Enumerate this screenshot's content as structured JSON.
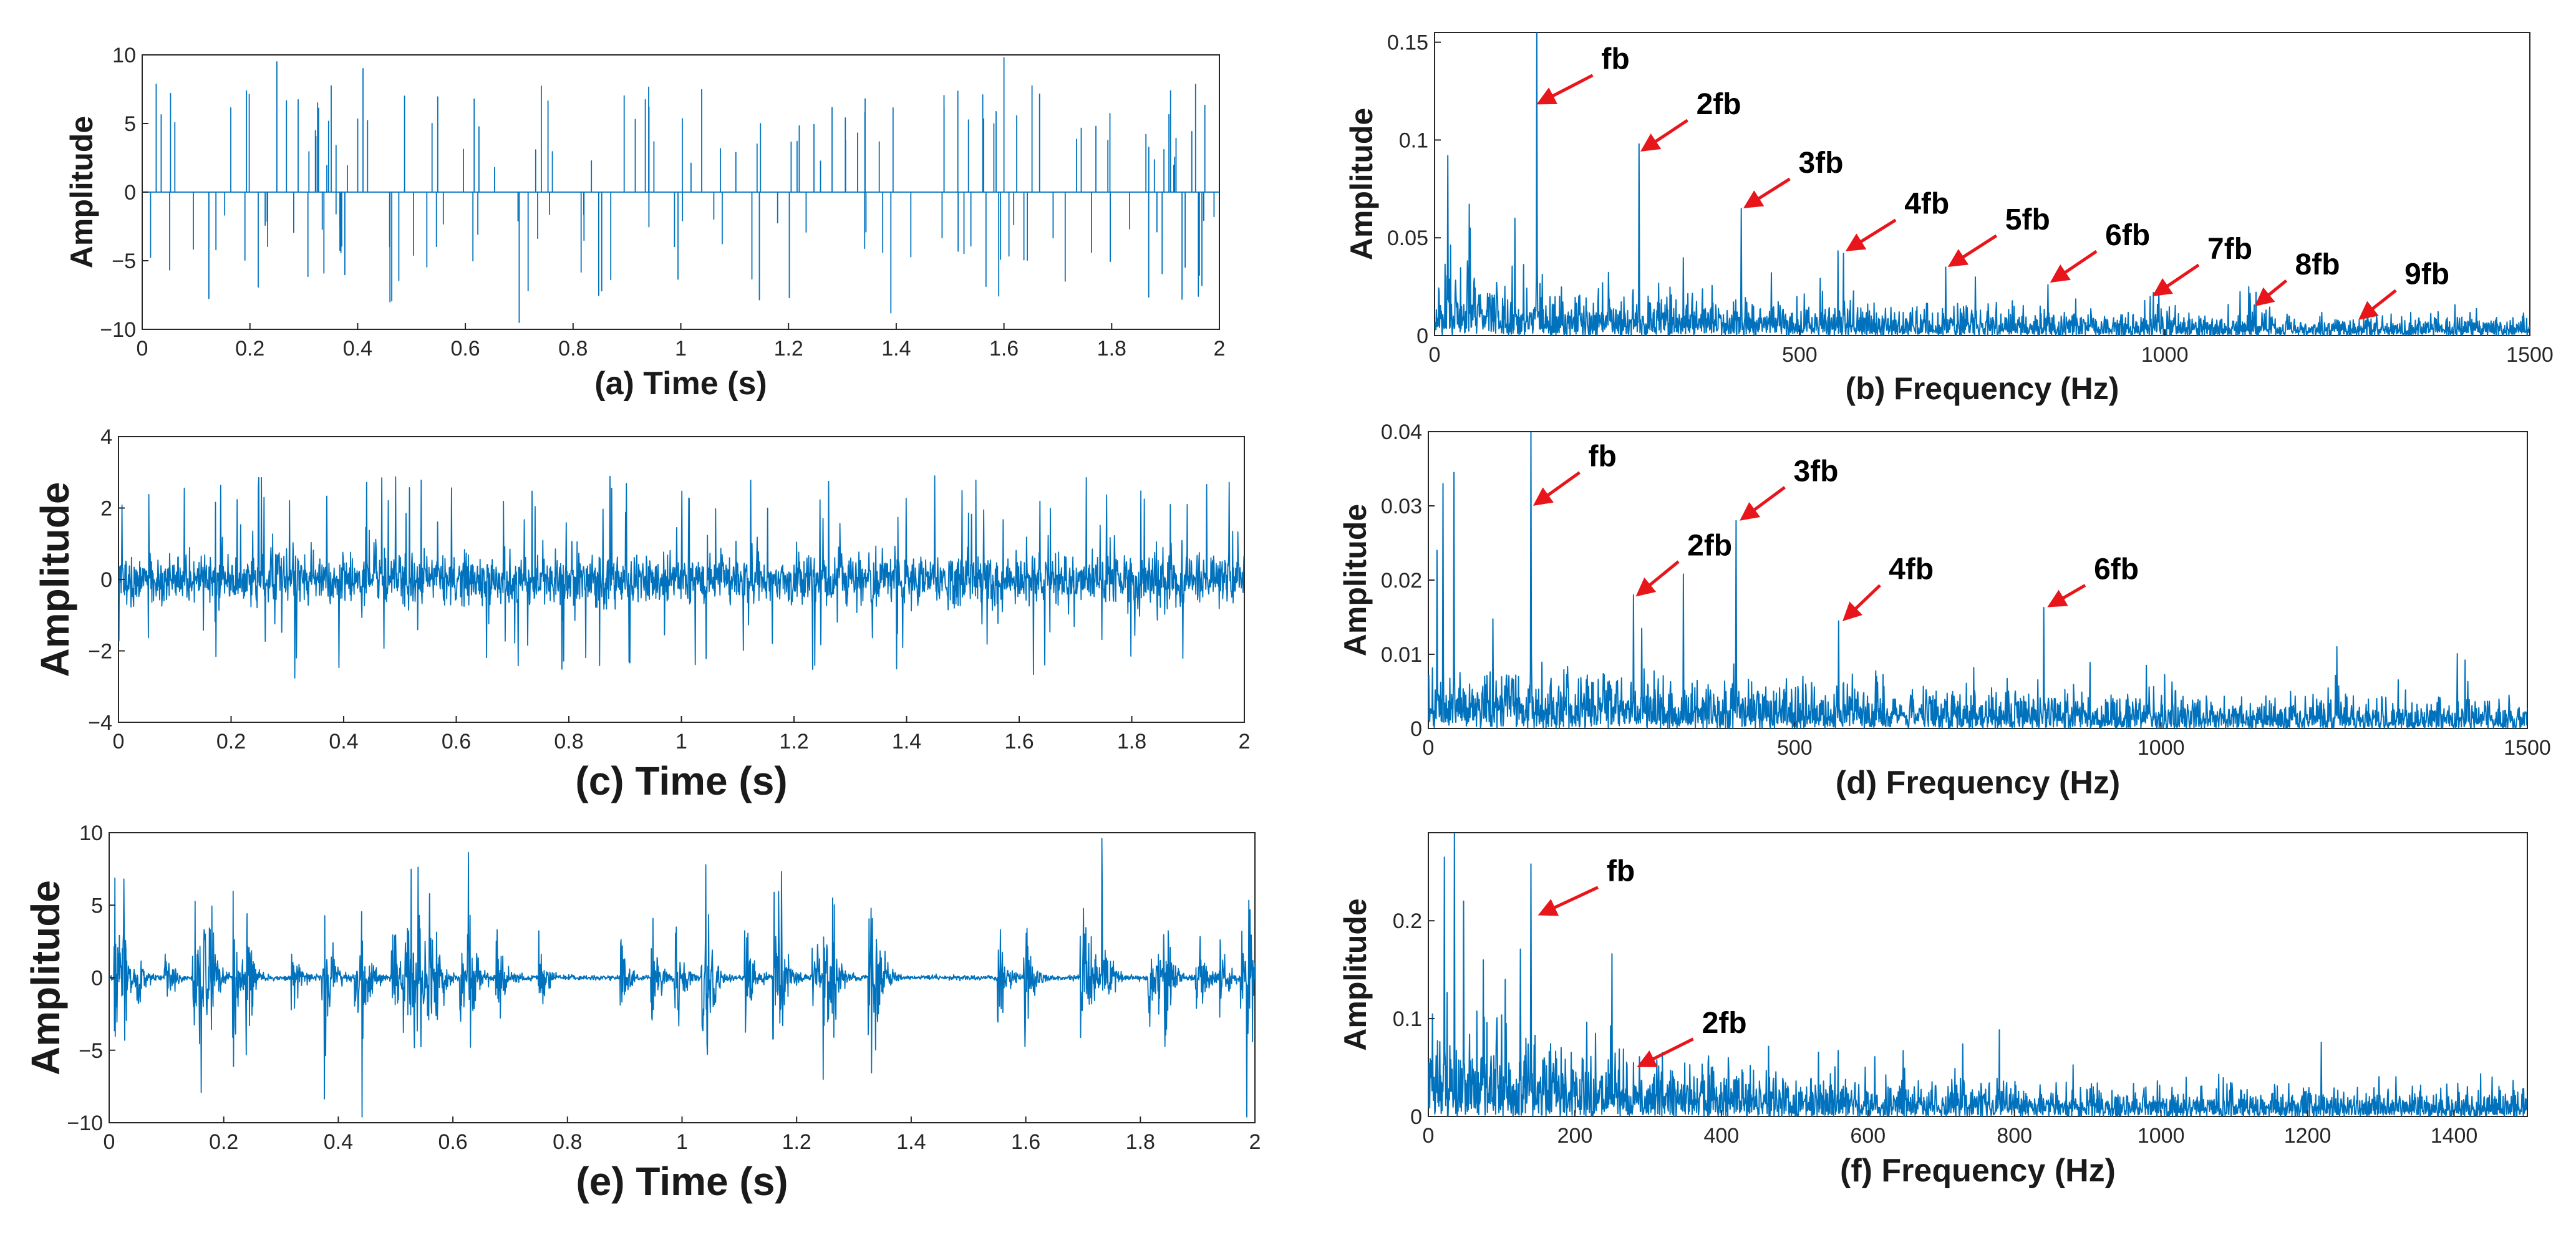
{
  "figure": {
    "signal_color": "#0072bd",
    "arrow_color": "#e8161b"
  },
  "chart_data": [
    {
      "id": "a",
      "type": "line",
      "kind": "impulse-time",
      "xlabel": "(a) Time (s)",
      "ylabel": "Amplitude",
      "xlim": [
        0,
        2
      ],
      "ylim": [
        -10,
        10
      ],
      "xticks": [
        0,
        0.2,
        0.4,
        0.6,
        0.8,
        1,
        1.2,
        1.4,
        1.6,
        1.8,
        2
      ],
      "xticklabels": [
        "0",
        "0.2",
        "0.4",
        "0.6",
        "0.8",
        "1",
        "1.2",
        "1.4",
        "1.6",
        "1.8",
        "2"
      ],
      "yticks": [
        -10,
        -5,
        0,
        5,
        10
      ],
      "yticklabels": [
        "−10",
        "−5",
        "0",
        "5",
        "10"
      ],
      "peak_amplitude": 9.8,
      "grid": false,
      "annotations": []
    },
    {
      "id": "b",
      "type": "line",
      "kind": "spectrum",
      "xlabel": "(b) Frequency (Hz)",
      "ylabel": "Amplitude",
      "xlim": [
        0,
        1500
      ],
      "ylim": [
        0,
        0.155
      ],
      "xticks": [
        0,
        500,
        1000,
        1500
      ],
      "xticklabels": [
        "0",
        "500",
        "1000",
        "1500"
      ],
      "yticks": [
        0,
        0.05,
        0.1,
        0.15
      ],
      "yticklabels": [
        "0",
        "0.05",
        "0.1",
        "0.15"
      ],
      "noise_level": 0.012,
      "noise_decay_hz": 600,
      "peaks": [
        {
          "x": 140,
          "y": 0.155
        },
        {
          "x": 280,
          "y": 0.098
        },
        {
          "x": 420,
          "y": 0.065
        },
        {
          "x": 560,
          "y": 0.042
        },
        {
          "x": 700,
          "y": 0.035
        },
        {
          "x": 840,
          "y": 0.026
        },
        {
          "x": 980,
          "y": 0.02
        },
        {
          "x": 1120,
          "y": 0.012
        },
        {
          "x": 1260,
          "y": 0.006
        },
        {
          "x": 18,
          "y": 0.092
        },
        {
          "x": 110,
          "y": 0.06
        }
      ],
      "grid": false,
      "annotations": [
        {
          "label": "fb",
          "x": 140,
          "y": 0.118,
          "tx": 225,
          "ty": 0.135
        },
        {
          "label": "2fb",
          "x": 282,
          "y": 0.094,
          "tx": 355,
          "ty": 0.112
        },
        {
          "label": "3fb",
          "x": 423,
          "y": 0.065,
          "tx": 495,
          "ty": 0.082
        },
        {
          "label": "4fb",
          "x": 563,
          "y": 0.043,
          "tx": 640,
          "ty": 0.061
        },
        {
          "label": "5fb",
          "x": 703,
          "y": 0.035,
          "tx": 778,
          "ty": 0.053
        },
        {
          "label": "6fb",
          "x": 843,
          "y": 0.027,
          "tx": 915,
          "ty": 0.045
        },
        {
          "label": "7fb",
          "x": 983,
          "y": 0.02,
          "tx": 1055,
          "ty": 0.038
        },
        {
          "label": "8fb",
          "x": 1123,
          "y": 0.015,
          "tx": 1175,
          "ty": 0.03
        },
        {
          "label": "9fb",
          "x": 1265,
          "y": 0.008,
          "tx": 1325,
          "ty": 0.025
        }
      ]
    },
    {
      "id": "c",
      "type": "line",
      "kind": "noisy-time",
      "xlabel": "(c) Time (s)",
      "ylabel": "Amplitude",
      "xlim": [
        0,
        2
      ],
      "ylim": [
        -4,
        4
      ],
      "xticks": [
        0,
        0.2,
        0.4,
        0.6,
        0.8,
        1,
        1.2,
        1.4,
        1.6,
        1.8,
        2
      ],
      "xticklabels": [
        "0",
        "0.2",
        "0.4",
        "0.6",
        "0.8",
        "1",
        "1.2",
        "1.4",
        "1.6",
        "1.8",
        "2"
      ],
      "yticks": [
        -4,
        -2,
        0,
        2,
        4
      ],
      "yticklabels": [
        "−4",
        "−2",
        "0",
        "2",
        "4"
      ],
      "peak_amplitude": 2.9,
      "noise_std": 0.35,
      "grid": false,
      "annotations": []
    },
    {
      "id": "d",
      "type": "line",
      "kind": "spectrum",
      "xlabel": "(d) Frequency (Hz)",
      "ylabel": "Amplitude",
      "xlim": [
        0,
        1500
      ],
      "ylim": [
        0,
        0.04
      ],
      "xticks": [
        0,
        500,
        1000,
        1500
      ],
      "xticklabels": [
        "0",
        "500",
        "1000",
        "1500"
      ],
      "yticks": [
        0,
        0.01,
        0.02,
        0.03,
        0.04
      ],
      "yticklabels": [
        "0",
        "0.01",
        "0.02",
        "0.03",
        "0.04"
      ],
      "noise_level": 0.0035,
      "noise_decay_hz": 1100,
      "peaks": [
        {
          "x": 140,
          "y": 0.04
        },
        {
          "x": 280,
          "y": 0.018
        },
        {
          "x": 420,
          "y": 0.028
        },
        {
          "x": 560,
          "y": 0.0145
        },
        {
          "x": 840,
          "y": 0.0163
        },
        {
          "x": 980,
          "y": 0.0085
        },
        {
          "x": 20,
          "y": 0.033
        },
        {
          "x": 35,
          "y": 0.0345
        },
        {
          "x": 12,
          "y": 0.024
        }
      ],
      "grid": false,
      "annotations": [
        {
          "label": "fb",
          "x": 143,
          "y": 0.03,
          "tx": 215,
          "ty": 0.035
        },
        {
          "label": "2fb",
          "x": 283,
          "y": 0.0178,
          "tx": 350,
          "ty": 0.023
        },
        {
          "label": "3fb",
          "x": 425,
          "y": 0.028,
          "tx": 495,
          "ty": 0.033
        },
        {
          "label": "4fb",
          "x": 565,
          "y": 0.0145,
          "tx": 625,
          "ty": 0.0198
        },
        {
          "label": "6fb",
          "x": 845,
          "y": 0.0163,
          "tx": 905,
          "ty": 0.0198
        }
      ]
    },
    {
      "id": "e",
      "type": "line",
      "kind": "burst-time",
      "xlabel": "(e) Time (s)",
      "ylabel": "Amplitude",
      "xlim": [
        0,
        2
      ],
      "ylim": [
        -10,
        10
      ],
      "xticks": [
        0,
        0.2,
        0.4,
        0.6,
        0.8,
        1,
        1.2,
        1.4,
        1.6,
        1.8,
        2
      ],
      "xticklabels": [
        "0",
        "0.2",
        "0.4",
        "0.6",
        "0.8",
        "1",
        "1.2",
        "1.4",
        "1.6",
        "1.8",
        "2"
      ],
      "yticks": [
        -10,
        -5,
        0,
        5,
        10
      ],
      "yticklabels": [
        "−10",
        "−5",
        "0",
        "5",
        "10"
      ],
      "peak_amplitude": 9.2,
      "grid": false,
      "annotations": []
    },
    {
      "id": "f",
      "type": "line",
      "kind": "spectrum",
      "xlabel": "(f) Frequency (Hz)",
      "ylabel": "Amplitude",
      "xlim": [
        0,
        1500
      ],
      "ylim": [
        0,
        0.29
      ],
      "xticks": [
        0,
        200,
        400,
        600,
        800,
        1000,
        1200,
        1400
      ],
      "xticklabels": [
        "0",
        "200",
        "400",
        "600",
        "800",
        "1000",
        "1200",
        "1400"
      ],
      "yticks": [
        0,
        0.1,
        0.2
      ],
      "yticklabels": [
        "0",
        "0.1",
        "0.2"
      ],
      "noise_level": 0.04,
      "noise_decay_hz": 360,
      "peaks": [
        {
          "x": 140,
          "y": 0.258
        },
        {
          "x": 22,
          "y": 0.265
        },
        {
          "x": 48,
          "y": 0.22
        },
        {
          "x": 75,
          "y": 0.16
        },
        {
          "x": 105,
          "y": 0.14
        },
        {
          "x": 280,
          "y": 0.055
        }
      ],
      "grid": false,
      "annotations": [
        {
          "label": "fb",
          "x": 150,
          "y": 0.205,
          "tx": 240,
          "ty": 0.238
        },
        {
          "label": "2fb",
          "x": 285,
          "y": 0.05,
          "tx": 370,
          "ty": 0.083
        }
      ]
    }
  ]
}
